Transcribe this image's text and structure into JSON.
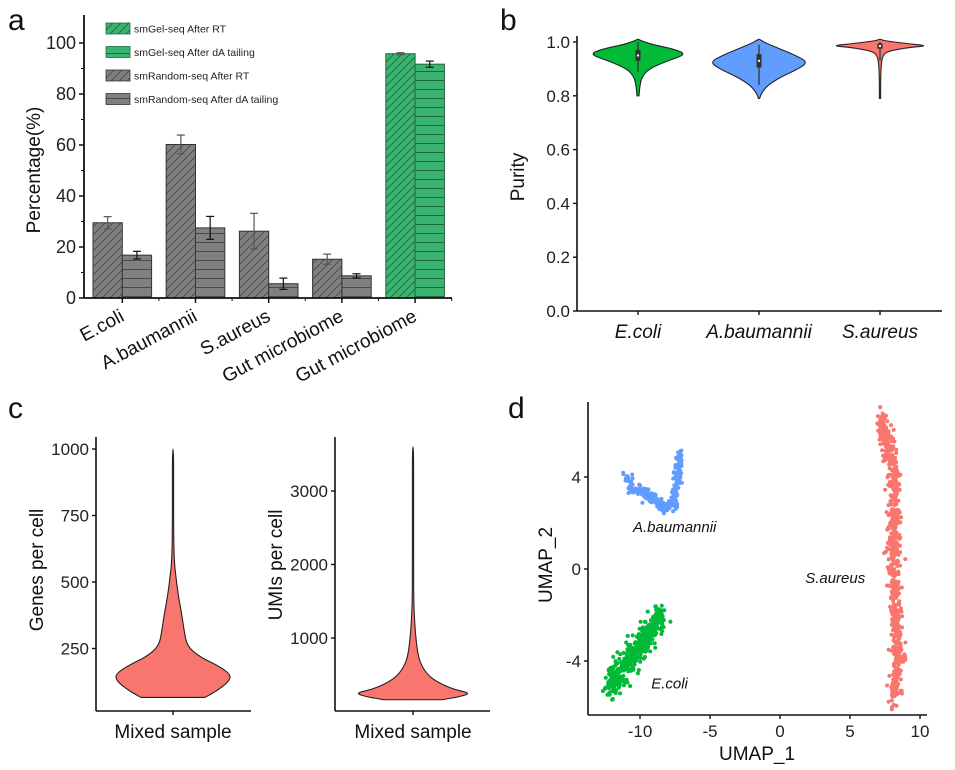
{
  "colors": {
    "grey_bar": "#808080",
    "green_bar": "#3cb371",
    "ecoli": "#00ba38",
    "abaumannii": "#619cff",
    "saureus": "#f8766d",
    "mixed": "#f8766d",
    "axis": "#111111"
  },
  "chart_data": [
    {
      "panel": "a",
      "type": "bar",
      "title": "",
      "ylabel": "Percentage(%)",
      "xlabel": "",
      "ylim": [
        0,
        110
      ],
      "yticks": [
        0,
        20,
        40,
        60,
        80,
        100
      ],
      "categories": [
        "E.coli",
        "A.baumannii",
        "S.aureus",
        "Gut microbiome",
        "Gut microbiome"
      ],
      "legend_position": "top-left",
      "legend": [
        {
          "label": "smGel-seq  After RT",
          "color": "#3cb371",
          "pattern": "diagonal"
        },
        {
          "label": "smGel-seq  After dA tailing",
          "color": "#3cb371",
          "pattern": "horizontal"
        },
        {
          "label": "smRandom-seq  After RT",
          "color": "#808080",
          "pattern": "diagonal"
        },
        {
          "label": "smRandom-seq  After dA tailing",
          "color": "#808080",
          "pattern": "horizontal"
        }
      ],
      "groups": [
        {
          "category": "E.coli",
          "method": "smRandom-seq",
          "after_rt": 29.5,
          "after_rt_err": 2.4,
          "after_da": 16.8,
          "after_da_err": 1.5
        },
        {
          "category": "A.baumannii",
          "method": "smRandom-seq",
          "after_rt": 60.2,
          "after_rt_err": 3.7,
          "after_da": 27.5,
          "after_da_err": 4.5
        },
        {
          "category": "S.aureus",
          "method": "smRandom-seq",
          "after_rt": 26.2,
          "after_rt_err": 7.0,
          "after_da": 5.6,
          "after_da_err": 2.2
        },
        {
          "category": "Gut microbiome",
          "method": "smRandom-seq",
          "after_rt": 15.2,
          "after_rt_err": 2.0,
          "after_da": 8.7,
          "after_da_err": 0.8
        },
        {
          "category": "Gut microbiome",
          "method": "smGel-seq",
          "after_rt": 95.8,
          "after_rt_err": 0.4,
          "after_da": 91.7,
          "after_da_err": 1.2
        }
      ]
    },
    {
      "panel": "b",
      "type": "violin",
      "ylabel": "Purity",
      "xlabel": "",
      "ylim": [
        0,
        1.0
      ],
      "yticks": [
        "0.0",
        "0.2",
        "0.4",
        "0.6",
        "0.8",
        "1.0"
      ],
      "categories": [
        "E.coli",
        "A.baumannii",
        "S.aureus"
      ],
      "violins": [
        {
          "name": "E.coli",
          "color": "#00ba38",
          "median": 0.95,
          "q1": 0.93,
          "q3": 0.97,
          "whisker_low": 0.89,
          "whisker_high": 1.0,
          "density": [
            [
              0.8,
              0.02
            ],
            [
              0.84,
              0.04
            ],
            [
              0.87,
              0.08
            ],
            [
              0.9,
              0.22
            ],
            [
              0.93,
              0.6
            ],
            [
              0.955,
              1.0
            ],
            [
              0.975,
              0.7
            ],
            [
              0.99,
              0.3
            ],
            [
              1.005,
              0.06
            ],
            [
              1.01,
              0.0
            ]
          ]
        },
        {
          "name": "A.baumannii",
          "color": "#619cff",
          "median": 0.93,
          "q1": 0.905,
          "q3": 0.955,
          "whisker_low": 0.84,
          "whisker_high": 0.99,
          "density": [
            [
              0.79,
              0.0
            ],
            [
              0.81,
              0.05
            ],
            [
              0.84,
              0.18
            ],
            [
              0.87,
              0.45
            ],
            [
              0.9,
              0.8
            ],
            [
              0.925,
              1.0
            ],
            [
              0.95,
              0.75
            ],
            [
              0.975,
              0.42
            ],
            [
              0.995,
              0.15
            ],
            [
              1.01,
              0.0
            ]
          ]
        },
        {
          "name": "S.aureus",
          "color": "#f8766d",
          "median": 0.985,
          "q1": 0.975,
          "q3": 0.995,
          "whisker_low": 0.93,
          "whisker_high": 1.0,
          "density": [
            [
              0.79,
              0.0
            ],
            [
              0.85,
              0.01
            ],
            [
              0.9,
              0.02
            ],
            [
              0.94,
              0.04
            ],
            [
              0.965,
              0.12
            ],
            [
              0.98,
              0.6
            ],
            [
              0.986,
              1.0
            ],
            [
              0.995,
              0.5
            ],
            [
              1.005,
              0.08
            ],
            [
              1.01,
              0.0
            ]
          ]
        }
      ]
    },
    {
      "panel": "c-left",
      "type": "violin",
      "ylabel": "Genes per cell",
      "xlabel": "",
      "categories": [
        "Mixed sample"
      ],
      "ylim": [
        15,
        1070
      ],
      "yticks": [
        250,
        500,
        750,
        1000
      ],
      "violins": [
        {
          "name": "Mixed sample",
          "color": "#f8766d",
          "density": [
            [
              66,
              0.55
            ],
            [
              90,
              0.75
            ],
            [
              125,
              0.96
            ],
            [
              152,
              1.0
            ],
            [
              185,
              0.78
            ],
            [
              220,
              0.45
            ],
            [
              260,
              0.24
            ],
            [
              320,
              0.19
            ],
            [
              380,
              0.15
            ],
            [
              450,
              0.09
            ],
            [
              520,
              0.05
            ],
            [
              580,
              0.02
            ],
            [
              700,
              0.008
            ],
            [
              850,
              0.004
            ],
            [
              1000,
              0.0
            ]
          ]
        }
      ]
    },
    {
      "panel": "c-right",
      "type": "violin",
      "ylabel": "UMIs per cell",
      "xlabel": "",
      "categories": [
        "Mixed sample"
      ],
      "ylim": [
        70,
        3780
      ],
      "yticks": [
        1000,
        2000,
        3000
      ],
      "violins": [
        {
          "name": "Mixed sample",
          "color": "#f8766d",
          "density": [
            [
              160,
              0.5
            ],
            [
              200,
              0.8
            ],
            [
              250,
              1.0
            ],
            [
              300,
              0.7
            ],
            [
              400,
              0.42
            ],
            [
              500,
              0.25
            ],
            [
              650,
              0.13
            ],
            [
              800,
              0.08
            ],
            [
              1000,
              0.05
            ],
            [
              1200,
              0.03
            ],
            [
              1500,
              0.012
            ],
            [
              2000,
              0.006
            ],
            [
              2800,
              0.004
            ],
            [
              3600,
              0.0
            ]
          ]
        }
      ]
    },
    {
      "panel": "d",
      "type": "scatter",
      "xlabel": "UMAP_1",
      "ylabel": "UMAP_2",
      "xlim": [
        -13.5,
        10.5
      ],
      "ylim": [
        -6.5,
        7.2
      ],
      "xticks": [
        -10,
        -5,
        0,
        5,
        10
      ],
      "yticks": [
        -4,
        0,
        4
      ],
      "clusters": [
        {
          "name": "A.baumannii",
          "color": "#619cff",
          "n": 260,
          "path": [
            [
              -11.0,
              4.0
            ],
            [
              -10.6,
              3.4
            ],
            [
              -9.8,
              3.4
            ],
            [
              -9.0,
              3.0
            ],
            [
              -8.2,
              2.6
            ],
            [
              -7.6,
              3.0
            ],
            [
              -7.3,
              3.8
            ],
            [
              -7.2,
              4.5
            ],
            [
              -7.2,
              5.1
            ]
          ],
          "spread": 0.35,
          "label_at": [
            -10.5,
            1.6
          ]
        },
        {
          "name": "E.coli",
          "color": "#00ba38",
          "n": 420,
          "path": [
            [
              -12.2,
              -5.3
            ],
            [
              -11.3,
              -4.5
            ],
            [
              -10.3,
              -3.6
            ],
            [
              -9.3,
              -2.8
            ],
            [
              -8.5,
              -2.0
            ]
          ],
          "spread": 0.75,
          "label_at": [
            -9.2,
            -5.2
          ]
        },
        {
          "name": "S.aureus",
          "color": "#f8766d",
          "n": 700,
          "path": [
            [
              7.2,
              6.6
            ],
            [
              8.2,
              4.0
            ],
            [
              8.1,
              1.0
            ],
            [
              8.2,
              -2.0
            ],
            [
              8.4,
              -4.0
            ],
            [
              8.2,
              -5.7
            ]
          ],
          "spread": 0.55,
          "label_at": [
            1.8,
            -0.6
          ]
        }
      ]
    }
  ],
  "panels": {
    "a": {
      "letter": "a"
    },
    "b": {
      "letter": "b"
    },
    "c": {
      "letter": "c"
    },
    "d": {
      "letter": "d"
    }
  }
}
